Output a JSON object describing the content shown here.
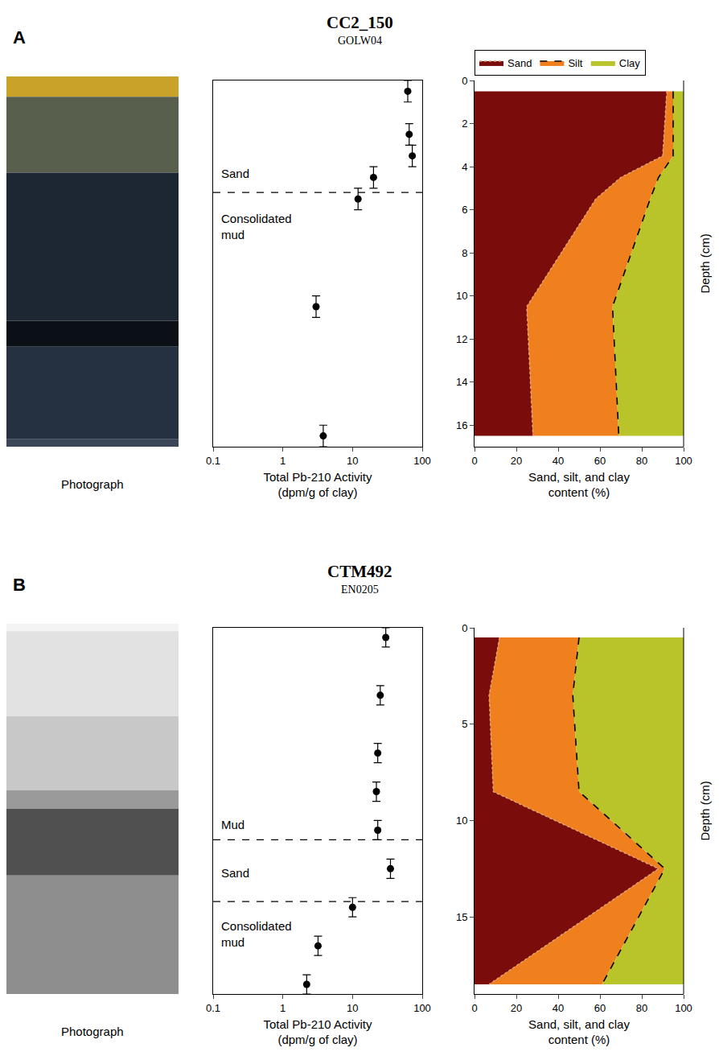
{
  "chart_data": [
    {
      "panel": "A",
      "title": "CC2_150",
      "subtitle": "GOLW04",
      "photograph": {
        "type": "photograph",
        "label": "Photograph"
      },
      "activity": {
        "type": "scatter",
        "color": "#000000",
        "marker": "circle",
        "x": [
          62,
          65,
          72,
          20,
          12,
          3,
          3.8
        ],
        "y": [
          0.5,
          2.5,
          3.5,
          4.5,
          5.5,
          10.5,
          16.5
        ],
        "y_error": [
          0.5,
          0.5,
          0.5,
          0.5,
          0.5,
          0.5,
          0.5
        ],
        "xlabel": [
          "Total Pb-210 Activity",
          "(dpm/g of clay)"
        ],
        "log": "x",
        "grid": false,
        "tick_labels": "x",
        "xlim": [
          0.1,
          100
        ],
        "xticks": [
          0.1,
          1,
          10,
          100
        ],
        "ylim": [
          0,
          17
        ],
        "yticks": [
          0,
          2,
          4,
          6,
          8,
          10,
          12,
          14,
          16
        ],
        "boundaries": [
          5.2
        ],
        "annotations": [
          {
            "text": [
              "Sand"
            ],
            "y": 4.3
          },
          {
            "text": [
              "Consolidated",
              "mud"
            ],
            "y": 6.8
          }
        ]
      },
      "grain_size": {
        "type": "area",
        "stacked": true,
        "grid": false,
        "legend": "top",
        "y": [
          0.5,
          3.5,
          4.5,
          5.5,
          10.5,
          16.5
        ],
        "series": [
          {
            "name": "Sand",
            "color": "#7b0c0c",
            "line_style": "dotted",
            "values": [
              92,
              90,
              70,
              58,
              25,
              28
            ]
          },
          {
            "name": "Silt",
            "color": "#f0801e",
            "line_style": "dashed",
            "values": [
              3,
              5,
              18,
              26,
              41,
              41
            ]
          },
          {
            "name": "Clay",
            "color": "#b8c42a",
            "line_style": "none",
            "values": [
              5,
              5,
              12,
              16,
              34,
              31
            ]
          }
        ],
        "xlabel": [
          "Sand, silt, and clay",
          "content (%)"
        ],
        "ylabel": "Depth (cm)",
        "xlim": [
          0,
          100
        ],
        "xticks": [
          0,
          20,
          40,
          60,
          80,
          100
        ],
        "ylim": [
          0,
          17
        ],
        "yticks": [
          0,
          2,
          4,
          6,
          8,
          10,
          12,
          14,
          16
        ]
      }
    },
    {
      "panel": "B",
      "title": "CTM492",
      "subtitle": "EN0205",
      "photograph": {
        "type": "photograph",
        "label": "Photograph"
      },
      "activity": {
        "type": "scatter",
        "color": "#000000",
        "marker": "circle",
        "x": [
          30,
          25,
          23,
          22,
          23,
          35,
          10,
          3.2,
          2.2
        ],
        "y": [
          0.5,
          3.5,
          6.5,
          8.5,
          10.5,
          12.5,
          14.5,
          16.5,
          18.5
        ],
        "y_error": [
          0.5,
          0.5,
          0.5,
          0.5,
          0.5,
          0.5,
          0.5,
          0.5,
          0.5
        ],
        "xlabel": [
          "Total Pb-210 Activity",
          "(dpm/g of clay)"
        ],
        "log": "x",
        "grid": false,
        "tick_labels": "x",
        "xlim": [
          0.1,
          100
        ],
        "xticks": [
          0.1,
          1,
          10,
          100
        ],
        "ylim": [
          0,
          19
        ],
        "yticks": [
          0,
          5,
          10,
          15
        ],
        "boundaries": [
          11,
          14.2
        ],
        "annotations": [
          {
            "text": [
              "Mud"
            ],
            "y": 10.2
          },
          {
            "text": [
              "Sand"
            ],
            "y": 12.7
          },
          {
            "text": [
              "Consolidated",
              "mud"
            ],
            "y": 15.9
          }
        ]
      },
      "grain_size": {
        "type": "area",
        "stacked": true,
        "grid": false,
        "y": [
          0.5,
          3.5,
          8.5,
          12.5,
          18.5
        ],
        "series": [
          {
            "name": "Sand",
            "color": "#7b0c0c",
            "line_style": "dotted",
            "values": [
              12,
              7,
              9,
              88,
              7
            ]
          },
          {
            "name": "Silt",
            "color": "#f0801e",
            "line_style": "dashed",
            "values": [
              38,
              40,
              41,
              3,
              54
            ]
          },
          {
            "name": "Clay",
            "color": "#b8c42a",
            "line_style": "none",
            "values": [
              50,
              53,
              50,
              9,
              39
            ]
          }
        ],
        "xlabel": [
          "Sand, silt, and clay",
          "content (%)"
        ],
        "ylabel": "Depth (cm)",
        "xlim": [
          0,
          100
        ],
        "xticks": [
          0,
          20,
          40,
          60,
          80,
          100
        ],
        "ylim": [
          0,
          19
        ],
        "yticks": [
          0,
          5,
          10,
          15
        ]
      }
    }
  ]
}
